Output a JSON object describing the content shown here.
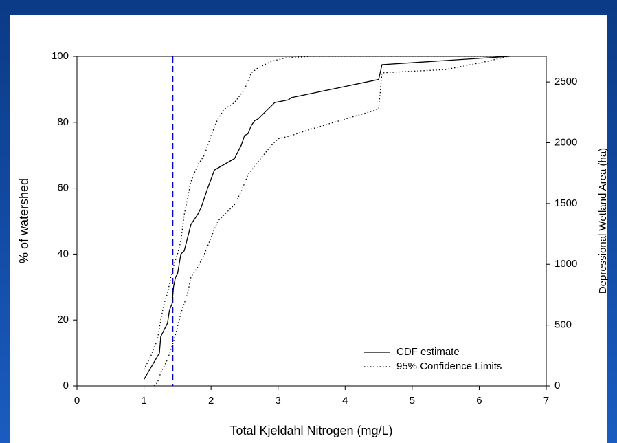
{
  "chart_data": {
    "type": "line",
    "xlabel": "Total Kjeldahl Nitrogen (mg/L)",
    "ylabel": "% of watershed",
    "y2label": "Depressional Wetland Area (ha)",
    "xlim": [
      0,
      7
    ],
    "xticks": [
      0,
      1,
      2,
      3,
      4,
      5,
      6,
      7
    ],
    "ylim": [
      0,
      100
    ],
    "yticks": [
      0,
      20,
      40,
      60,
      80,
      100
    ],
    "y2lim": [
      0,
      2710
    ],
    "y2ticks": [
      0,
      500,
      1000,
      1500,
      2000,
      2500
    ],
    "reference_x": 1.43,
    "reference_color": "#0000cc",
    "legend": "lower right",
    "series": [
      {
        "name": "CDF estimate",
        "color": "#000000",
        "dash": "solid",
        "x": [
          1.0,
          1.23,
          1.25,
          1.3,
          1.35,
          1.38,
          1.42,
          1.44,
          1.47,
          1.5,
          1.55,
          1.6,
          1.65,
          1.7,
          1.8,
          1.85,
          1.95,
          2.05,
          2.35,
          2.45,
          2.5,
          2.55,
          2.6,
          2.65,
          2.7,
          2.95,
          3.15,
          3.2,
          4.5,
          4.55,
          6.45
        ],
        "values": [
          2,
          10,
          15,
          17,
          19,
          23,
          25,
          30,
          33,
          34,
          40,
          41,
          45,
          49,
          52,
          54,
          60,
          65.5,
          69,
          73,
          76,
          76.5,
          79,
          80.5,
          81,
          86,
          86.8,
          87.5,
          93,
          97.5,
          100
        ]
      },
      {
        "name": "95% Confidence Limits",
        "color": "#000000",
        "dash": "dotted",
        "x": [
          1.0,
          1.1,
          1.2,
          1.25,
          1.3,
          1.35,
          1.4,
          1.45,
          1.5,
          1.55,
          1.6,
          1.65,
          1.7,
          1.8,
          1.9,
          2.0,
          2.1,
          2.2,
          2.35,
          2.5,
          2.6,
          2.7,
          2.9,
          3.1,
          3.5,
          6.45
        ],
        "values": [
          5,
          9,
          14,
          20,
          25,
          28,
          33,
          37,
          40,
          44,
          52,
          57,
          62,
          67,
          70,
          76,
          81,
          84,
          86,
          90,
          95,
          96.5,
          98.5,
          99.5,
          100,
          100
        ]
      },
      {
        "color": "#000000",
        "dash": "dotted",
        "x": [
          1.15,
          1.2,
          1.25,
          1.35,
          1.45,
          1.5,
          1.55,
          1.6,
          1.65,
          1.7,
          1.8,
          1.9,
          2.0,
          2.1,
          2.2,
          2.35,
          2.45,
          2.55,
          2.7,
          2.9,
          3.0,
          3.2,
          3.5,
          4.0,
          4.5,
          4.55,
          5.0,
          5.5,
          6.0,
          6.45
        ],
        "values": [
          0,
          1,
          4,
          8,
          14,
          18,
          22,
          25,
          28,
          33,
          36,
          40,
          45,
          50,
          52,
          55,
          59,
          64,
          68,
          73,
          75,
          76,
          78,
          81,
          84,
          95,
          95.5,
          96,
          98,
          100
        ]
      }
    ]
  }
}
